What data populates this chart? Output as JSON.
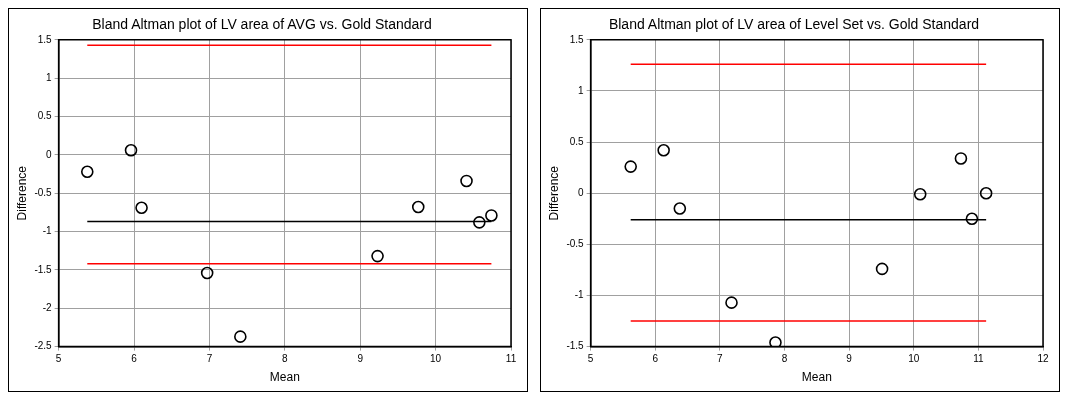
{
  "chart_data": [
    {
      "type": "scatter",
      "title": "Bland Altman plot of LV area of AVG vs. Gold Standard",
      "xlabel": "Mean",
      "ylabel": "Difference",
      "xlim": [
        5,
        11
      ],
      "ylim": [
        -2.5,
        1.5
      ],
      "xticks": [
        5,
        6,
        7,
        8,
        9,
        10,
        11
      ],
      "yticks": [
        -2.5,
        -2,
        -1.5,
        -1,
        -0.5,
        0,
        0.5,
        1,
        1.5
      ],
      "grid": true,
      "series": [
        {
          "marker": "circle",
          "color": "#000000",
          "x": [
            5.38,
            5.96,
            6.1,
            6.97,
            7.41,
            9.23,
            9.77,
            10.41,
            10.58,
            10.74
          ],
          "values": [
            -0.22,
            0.06,
            -0.69,
            -1.54,
            -2.37,
            -1.32,
            -0.68,
            -0.34,
            -0.88,
            -0.79
          ]
        },
        {
          "type": "line",
          "marker": "none",
          "color": "#ff0000",
          "x": [
            5.38,
            10.74
          ],
          "values": [
            1.43,
            1.43
          ]
        },
        {
          "type": "line",
          "marker": "none",
          "color": "#000000",
          "x": [
            5.38,
            10.74
          ],
          "values": [
            -0.87,
            -0.87
          ]
        },
        {
          "type": "line",
          "marker": "none",
          "color": "#ff0000",
          "x": [
            5.38,
            10.74
          ],
          "values": [
            -1.42,
            -1.42
          ]
        }
      ]
    },
    {
      "type": "scatter",
      "title": "Bland Altman plot of LV area of Level Set vs. Gold Standard",
      "xlabel": "Mean",
      "ylabel": "Difference",
      "xlim": [
        5,
        12
      ],
      "ylim": [
        -1.5,
        1.5
      ],
      "xticks": [
        5,
        6,
        7,
        8,
        9,
        10,
        11,
        12
      ],
      "yticks": [
        -1.5,
        -1,
        -0.5,
        0,
        0.5,
        1,
        1.5
      ],
      "grid": true,
      "series": [
        {
          "marker": "circle",
          "color": "#000000",
          "x": [
            5.62,
            6.13,
            6.38,
            7.18,
            7.86,
            9.51,
            10.1,
            10.73,
            10.9,
            11.12
          ],
          "values": [
            0.26,
            0.42,
            -0.15,
            -1.07,
            -1.46,
            -0.74,
            -0.01,
            0.34,
            -0.25,
            0.0
          ]
        },
        {
          "type": "line",
          "marker": "none",
          "color": "#ff0000",
          "x": [
            5.62,
            11.12
          ],
          "values": [
            1.26,
            1.26
          ]
        },
        {
          "type": "line",
          "marker": "none",
          "color": "#000000",
          "x": [
            5.62,
            11.12
          ],
          "values": [
            -0.26,
            -0.26
          ]
        },
        {
          "type": "line",
          "marker": "none",
          "color": "#ff0000",
          "x": [
            5.62,
            11.12
          ],
          "values": [
            -1.25,
            -1.25
          ]
        }
      ]
    }
  ]
}
